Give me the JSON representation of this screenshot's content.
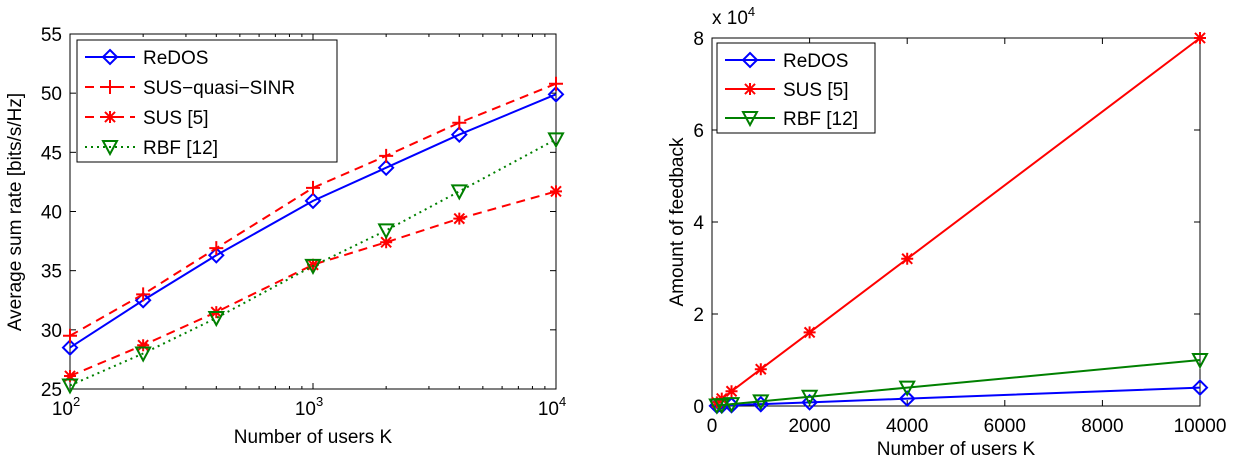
{
  "chart_data": [
    {
      "type": "line",
      "xlabel": "Number of users K",
      "ylabel": "Average sum rate [bits/s/Hz]",
      "xscale": "log",
      "xlim": [
        100,
        10000
      ],
      "ylim": [
        25,
        55
      ],
      "xticks": [
        100,
        1000,
        10000
      ],
      "xtick_bases": [
        "10",
        "10",
        "10"
      ],
      "xtick_exps": [
        "2",
        "3",
        "4"
      ],
      "yticks": [
        "25",
        "30",
        "35",
        "40",
        "45",
        "50",
        "55"
      ],
      "grid": false,
      "legend_position": "top-left",
      "x": [
        100,
        200,
        400,
        1000,
        2000,
        4000,
        10000
      ],
      "series": [
        {
          "name": "ReDOS",
          "color": "#0000ff",
          "dash": "solid",
          "marker": "diamond",
          "values": [
            28.5,
            32.5,
            36.3,
            40.9,
            43.7,
            46.5,
            49.9
          ]
        },
        {
          "name": "SUS−quasi−SINR",
          "color": "#ff0000",
          "dash": "dashed",
          "marker": "plus",
          "values": [
            29.5,
            33.0,
            36.9,
            42.0,
            44.7,
            47.5,
            50.8
          ]
        },
        {
          "name": "SUS [5]",
          "color": "#ff0000",
          "dash": "dashed",
          "marker": "asterisk",
          "values": [
            26.1,
            28.7,
            31.5,
            35.5,
            37.4,
            39.4,
            41.7
          ]
        },
        {
          "name": "RBF [12]",
          "color": "#008000",
          "dash": "dotted",
          "marker": "triangle-down",
          "values": [
            25.3,
            28.0,
            31.0,
            35.4,
            38.4,
            41.7,
            46.1
          ]
        }
      ]
    },
    {
      "type": "line",
      "xlabel": "Number of users K",
      "ylabel": "Amount of feedback",
      "xscale": "linear",
      "xlim": [
        0,
        10000
      ],
      "ylim": [
        0,
        80000
      ],
      "xticks": [
        "0",
        "2000",
        "4000",
        "6000",
        "8000",
        "10000"
      ],
      "yticks": [
        "0",
        "2",
        "4",
        "6",
        "8"
      ],
      "y_multiplier_base": "x 10",
      "y_multiplier_exp": "4",
      "grid": false,
      "legend_position": "top-left",
      "x": [
        100,
        200,
        400,
        1000,
        2000,
        4000,
        10000
      ],
      "series": [
        {
          "name": "ReDOS",
          "color": "#0000ff",
          "dash": "solid",
          "marker": "diamond",
          "values": [
            40,
            80,
            160,
            400,
            800,
            1600,
            4000
          ]
        },
        {
          "name": "SUS [5]",
          "color": "#ff0000",
          "dash": "solid",
          "marker": "asterisk",
          "values": [
            800,
            1600,
            3200,
            8000,
            16000,
            32000,
            80000
          ]
        },
        {
          "name": "RBF [12]",
          "color": "#008000",
          "dash": "solid",
          "marker": "triangle-down",
          "values": [
            100,
            200,
            400,
            1000,
            2000,
            4000,
            10000
          ]
        }
      ]
    }
  ]
}
